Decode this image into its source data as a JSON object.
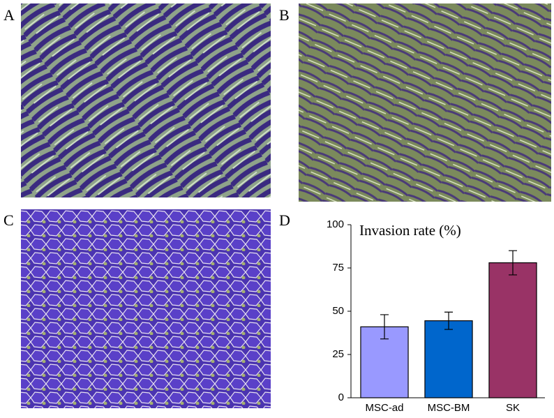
{
  "panels": [
    "A",
    "B",
    "C",
    "D"
  ],
  "chart_data": {
    "type": "bar",
    "title": "Invasion rate (%)",
    "categories": [
      "MSC-ad",
      "MSC-BM",
      "SK"
    ],
    "values": [
      41,
      44.5,
      78
    ],
    "errors": [
      7,
      5,
      7
    ],
    "colors": [
      "#9999ff",
      "#0066cc",
      "#993366"
    ],
    "ylim": [
      0,
      100
    ],
    "yticks": [
      0,
      25,
      50,
      75,
      100
    ]
  }
}
